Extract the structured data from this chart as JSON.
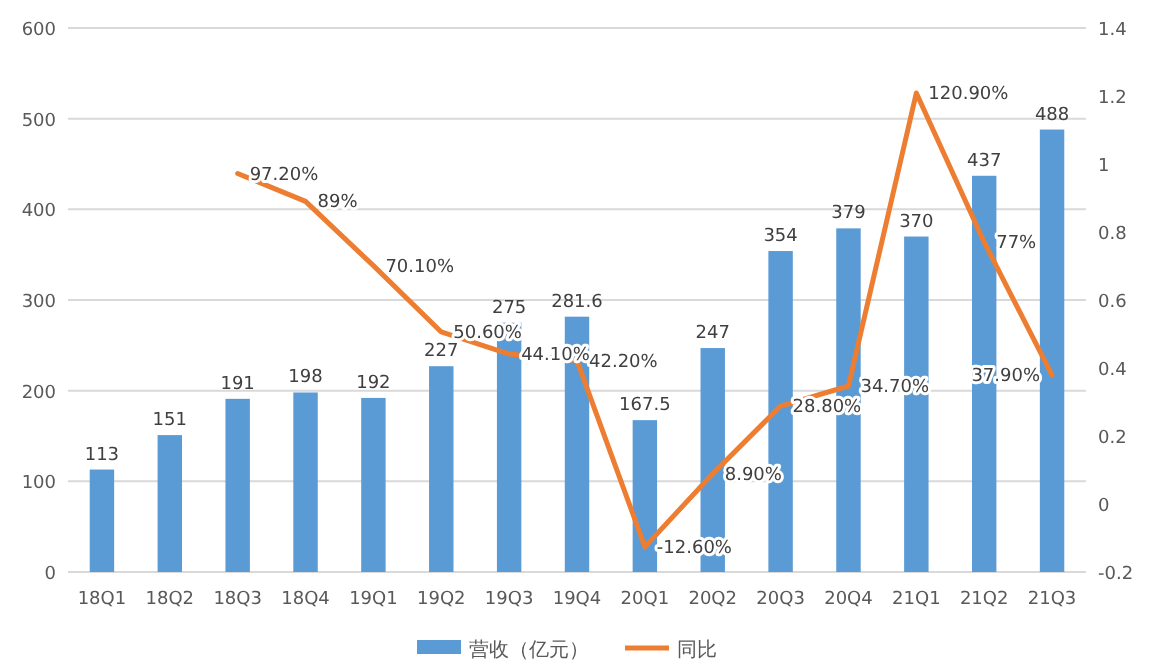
{
  "chart_data": {
    "type": "bar",
    "categories": [
      "18Q1",
      "18Q2",
      "18Q3",
      "18Q4",
      "19Q1",
      "19Q2",
      "19Q3",
      "19Q4",
      "20Q1",
      "20Q2",
      "20Q3",
      "20Q4",
      "21Q1",
      "21Q2",
      "21Q3"
    ],
    "series": [
      {
        "name": "营收（亿元）",
        "color": "#5b9bd5",
        "values": [
          113,
          151,
          191,
          198,
          192,
          227,
          275,
          281.6,
          167.5,
          247,
          354,
          379,
          370,
          437,
          488
        ]
      },
      {
        "name": "同比",
        "type": "line",
        "axis": "y2",
        "color": "#ed7d31",
        "values": [
          null,
          null,
          0.972,
          0.89,
          0.701,
          0.506,
          0.441,
          0.422,
          -0.126,
          0.089,
          0.288,
          0.347,
          1.209,
          0.77,
          0.379
        ],
        "value_labels": [
          null,
          null,
          "97.20%",
          "89%",
          "70.10%",
          "50.60%",
          "44.10%",
          "42.20%",
          "-12.60%",
          "8.90%",
          "28.80%",
          "34.70%",
          "120.90%",
          "77%",
          "37.90%"
        ]
      }
    ],
    "ylim": [
      0,
      600
    ],
    "yticks": [
      0,
      100,
      200,
      300,
      400,
      500,
      600
    ],
    "y2lim": [
      -0.2,
      1.4
    ],
    "y2ticks": [
      -0.2,
      0,
      0.2,
      0.4,
      0.6,
      0.8,
      1,
      1.2,
      1.4
    ],
    "grid": "y",
    "legend": "bottom",
    "data_labels": true,
    "marker": "none",
    "line_style": "solid"
  }
}
